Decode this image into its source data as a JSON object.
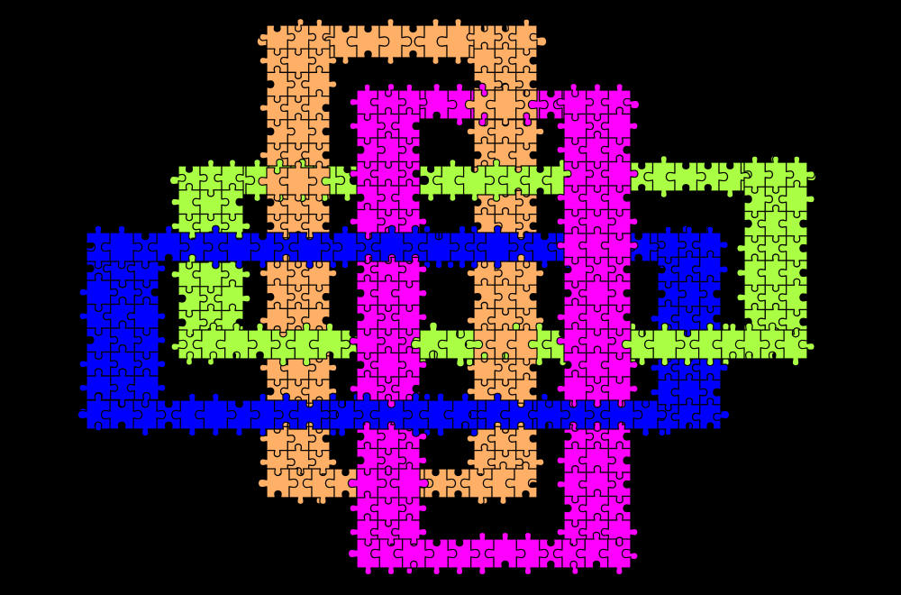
{
  "background": "#000000",
  "piece_outline": "#000000",
  "frames": [
    {
      "id": "orange",
      "color": "#FFB066"
    },
    {
      "id": "magenta",
      "color": "#FF00FF"
    },
    {
      "id": "lime",
      "color": "#AAFF44"
    },
    {
      "id": "blue",
      "color": "#0000FF"
    }
  ]
}
